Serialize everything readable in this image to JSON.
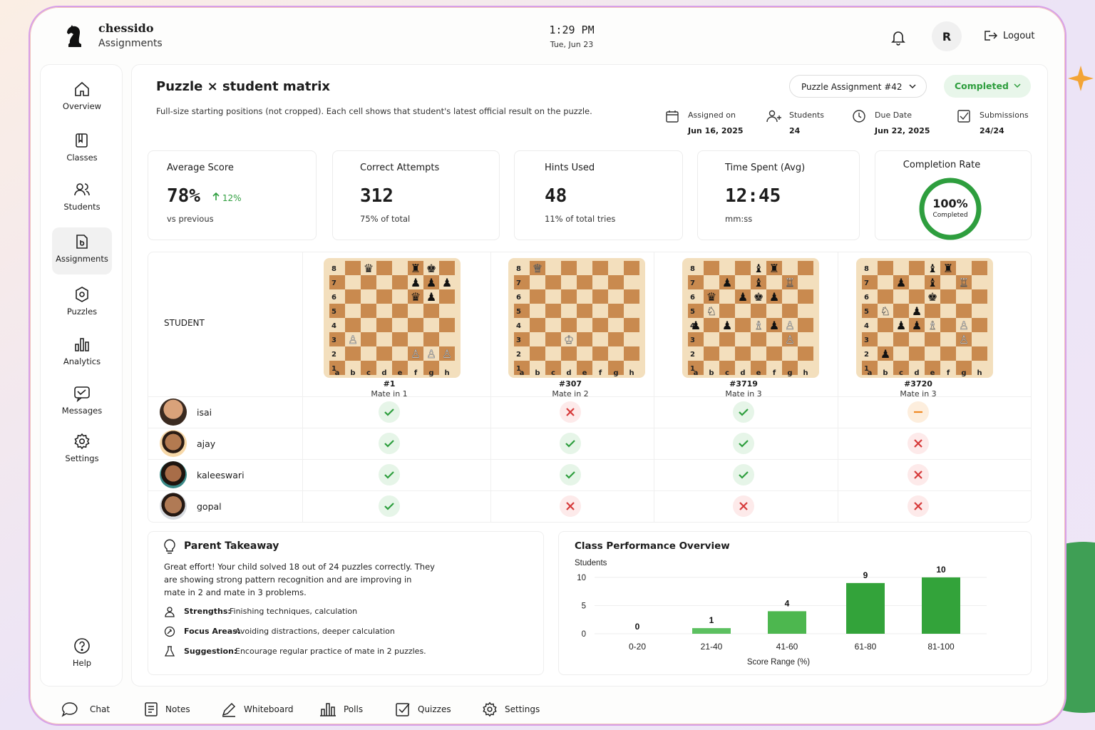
{
  "header": {
    "brand": "chessido",
    "section": "Assignments",
    "time": "1:29 PM",
    "date": "Tue, Jun 23",
    "avatar_initial": "R",
    "logout_label": "Logout"
  },
  "sidebar": {
    "items": [
      {
        "label": "Overview",
        "icon": "home-icon"
      },
      {
        "label": "Classes",
        "icon": "book-icon"
      },
      {
        "label": "Students",
        "icon": "users-icon"
      },
      {
        "label": "Assignments",
        "icon": "assignment-icon",
        "active": true
      },
      {
        "label": "Puzzles",
        "icon": "puzzle-icon"
      },
      {
        "label": "Analytics",
        "icon": "bar-chart-icon"
      },
      {
        "label": "Messages",
        "icon": "message-icon"
      },
      {
        "label": "Settings",
        "icon": "gear-icon"
      }
    ],
    "help_label": "Help"
  },
  "main": {
    "title": "Puzzle × student matrix",
    "description": "Full-size starting positions (not cropped). Each cell shows that student's latest official result on the puzzle.",
    "assignment_select": "Puzzle Assignment #42",
    "status": "Completed",
    "meta": [
      {
        "label": "Assigned on",
        "value": "Jun 16, 2025",
        "icon": "calendar-icon"
      },
      {
        "label": "Students",
        "value": "24",
        "icon": "users-icon"
      },
      {
        "label": "Due Date",
        "value": "Jun 22, 2025",
        "icon": "clock-icon"
      },
      {
        "label": "Submissions",
        "value": "24/24",
        "icon": "checkbox-icon"
      }
    ]
  },
  "stats": {
    "avg_score": {
      "label": "Average Score",
      "value": "78%",
      "delta": "12%",
      "sub": "vs previous"
    },
    "correct": {
      "label": "Correct Attempts",
      "value": "312",
      "sub": "75% of total"
    },
    "hints": {
      "label": "Hints Used",
      "value": "48",
      "sub": "11% of total tries"
    },
    "time": {
      "label": "Time Spent (Avg)",
      "value": "12:45",
      "sub": "mm:ss"
    },
    "completion": {
      "label": "Completion Rate",
      "value": "100%",
      "sub": "Completed",
      "fraction": 1.0
    }
  },
  "matrix": {
    "student_header": "STUDENT",
    "files": [
      "a",
      "b",
      "c",
      "d",
      "e",
      "f",
      "g",
      "h"
    ],
    "puzzles": [
      {
        "id": "#1",
        "type": "Mate in 1",
        "pieces": [
          [
            "c8",
            "bq"
          ],
          [
            "f8",
            "br"
          ],
          [
            "g8",
            "bk"
          ],
          [
            "f7",
            "bp"
          ],
          [
            "g7",
            "bp"
          ],
          [
            "h7",
            "bp"
          ],
          [
            "f6",
            "bq"
          ],
          [
            "g6",
            "bp"
          ],
          [
            "b3",
            "wp"
          ],
          [
            "f2",
            "wp"
          ],
          [
            "g2",
            "wp"
          ],
          [
            "h2",
            "wp"
          ]
        ]
      },
      {
        "id": "#307",
        "type": "Mate in 2",
        "pieces": [
          [
            "b8",
            "wq"
          ],
          [
            "d3",
            "wk"
          ]
        ]
      },
      {
        "id": "#3719",
        "type": "Mate in 3",
        "pieces": [
          [
            "e8",
            "bb"
          ],
          [
            "f8",
            "br"
          ],
          [
            "c7",
            "bp"
          ],
          [
            "e7",
            "bb"
          ],
          [
            "g7",
            "wr"
          ],
          [
            "b6",
            "bq"
          ],
          [
            "d6",
            "bp"
          ],
          [
            "e6",
            "bk"
          ],
          [
            "f6",
            "bp"
          ],
          [
            "b5",
            "wn"
          ],
          [
            "a4",
            "bp"
          ],
          [
            "c4",
            "bp"
          ],
          [
            "e4",
            "wb"
          ],
          [
            "f4",
            "bp"
          ],
          [
            "g4",
            "wp"
          ],
          [
            "g3",
            "wp"
          ]
        ]
      },
      {
        "id": "#3720",
        "type": "Mate in 3",
        "pieces": [
          [
            "e8",
            "bb"
          ],
          [
            "f8",
            "br"
          ],
          [
            "c7",
            "bp"
          ],
          [
            "e7",
            "bb"
          ],
          [
            "g7",
            "wr"
          ],
          [
            "e6",
            "bk"
          ],
          [
            "b5",
            "wn"
          ],
          [
            "d5",
            "bp"
          ],
          [
            "c4",
            "bp"
          ],
          [
            "d4",
            "bp"
          ],
          [
            "e4",
            "wb"
          ],
          [
            "g4",
            "wp"
          ],
          [
            "g3",
            "wp"
          ],
          [
            "b2",
            "bp"
          ]
        ]
      }
    ],
    "students": [
      {
        "name": "isai",
        "results": [
          "correct",
          "wrong",
          "correct",
          "partial"
        ]
      },
      {
        "name": "ajay",
        "results": [
          "correct",
          "correct",
          "correct",
          "wrong"
        ]
      },
      {
        "name": "kaleeswari",
        "results": [
          "correct",
          "correct",
          "correct",
          "wrong"
        ]
      },
      {
        "name": "gopal",
        "results": [
          "correct",
          "wrong",
          "wrong",
          "wrong"
        ]
      }
    ]
  },
  "parent_takeaway": {
    "title": "Parent Takeaway",
    "body": "Great effort! Your child solved 18 out of 24 puzzles correctly. They are showing strong pattern recognition and are improving in mate in 2 and mate in 3 problems.",
    "strengths_key": "Strengths:",
    "strengths": "Finishing techniques, calculation",
    "focus_key": "Focus Areas:",
    "focus": "Avoiding distractions, deeper calculation",
    "suggestion_key": "Suggestion:",
    "suggestion": "Encourage regular practice of mate in 2 puzzles."
  },
  "chart_data": {
    "type": "bar",
    "title": "Class Performance Overview",
    "ylabel": "Students",
    "xlabel": "Score Range (%)",
    "categories": [
      "0-20",
      "21-40",
      "41-60",
      "61-80",
      "81-100"
    ],
    "values": [
      0,
      1,
      4,
      9,
      10
    ],
    "yticks": [
      0,
      5,
      10
    ],
    "ylim": [
      0,
      11
    ],
    "grid": true,
    "bar_colors": [
      "#5cc060",
      "#5cc060",
      "#4db74f",
      "#33a33a",
      "#33a33a"
    ]
  },
  "bottombar": {
    "items": [
      {
        "label": "Chat",
        "icon": "chat-icon"
      },
      {
        "label": "Notes",
        "icon": "notes-icon"
      },
      {
        "label": "Whiteboard",
        "icon": "pen-icon"
      },
      {
        "label": "Polls",
        "icon": "poll-icon"
      },
      {
        "label": "Quizzes",
        "icon": "quiz-icon"
      },
      {
        "label": "Settings",
        "icon": "gear-icon"
      }
    ]
  },
  "colors": {
    "accent_green": "#2e9e3e",
    "board_light": "#f3dfbd",
    "board_dark": "#c98a4f",
    "wrong_red": "#d63a3a",
    "partial_orange": "#f08a24"
  }
}
